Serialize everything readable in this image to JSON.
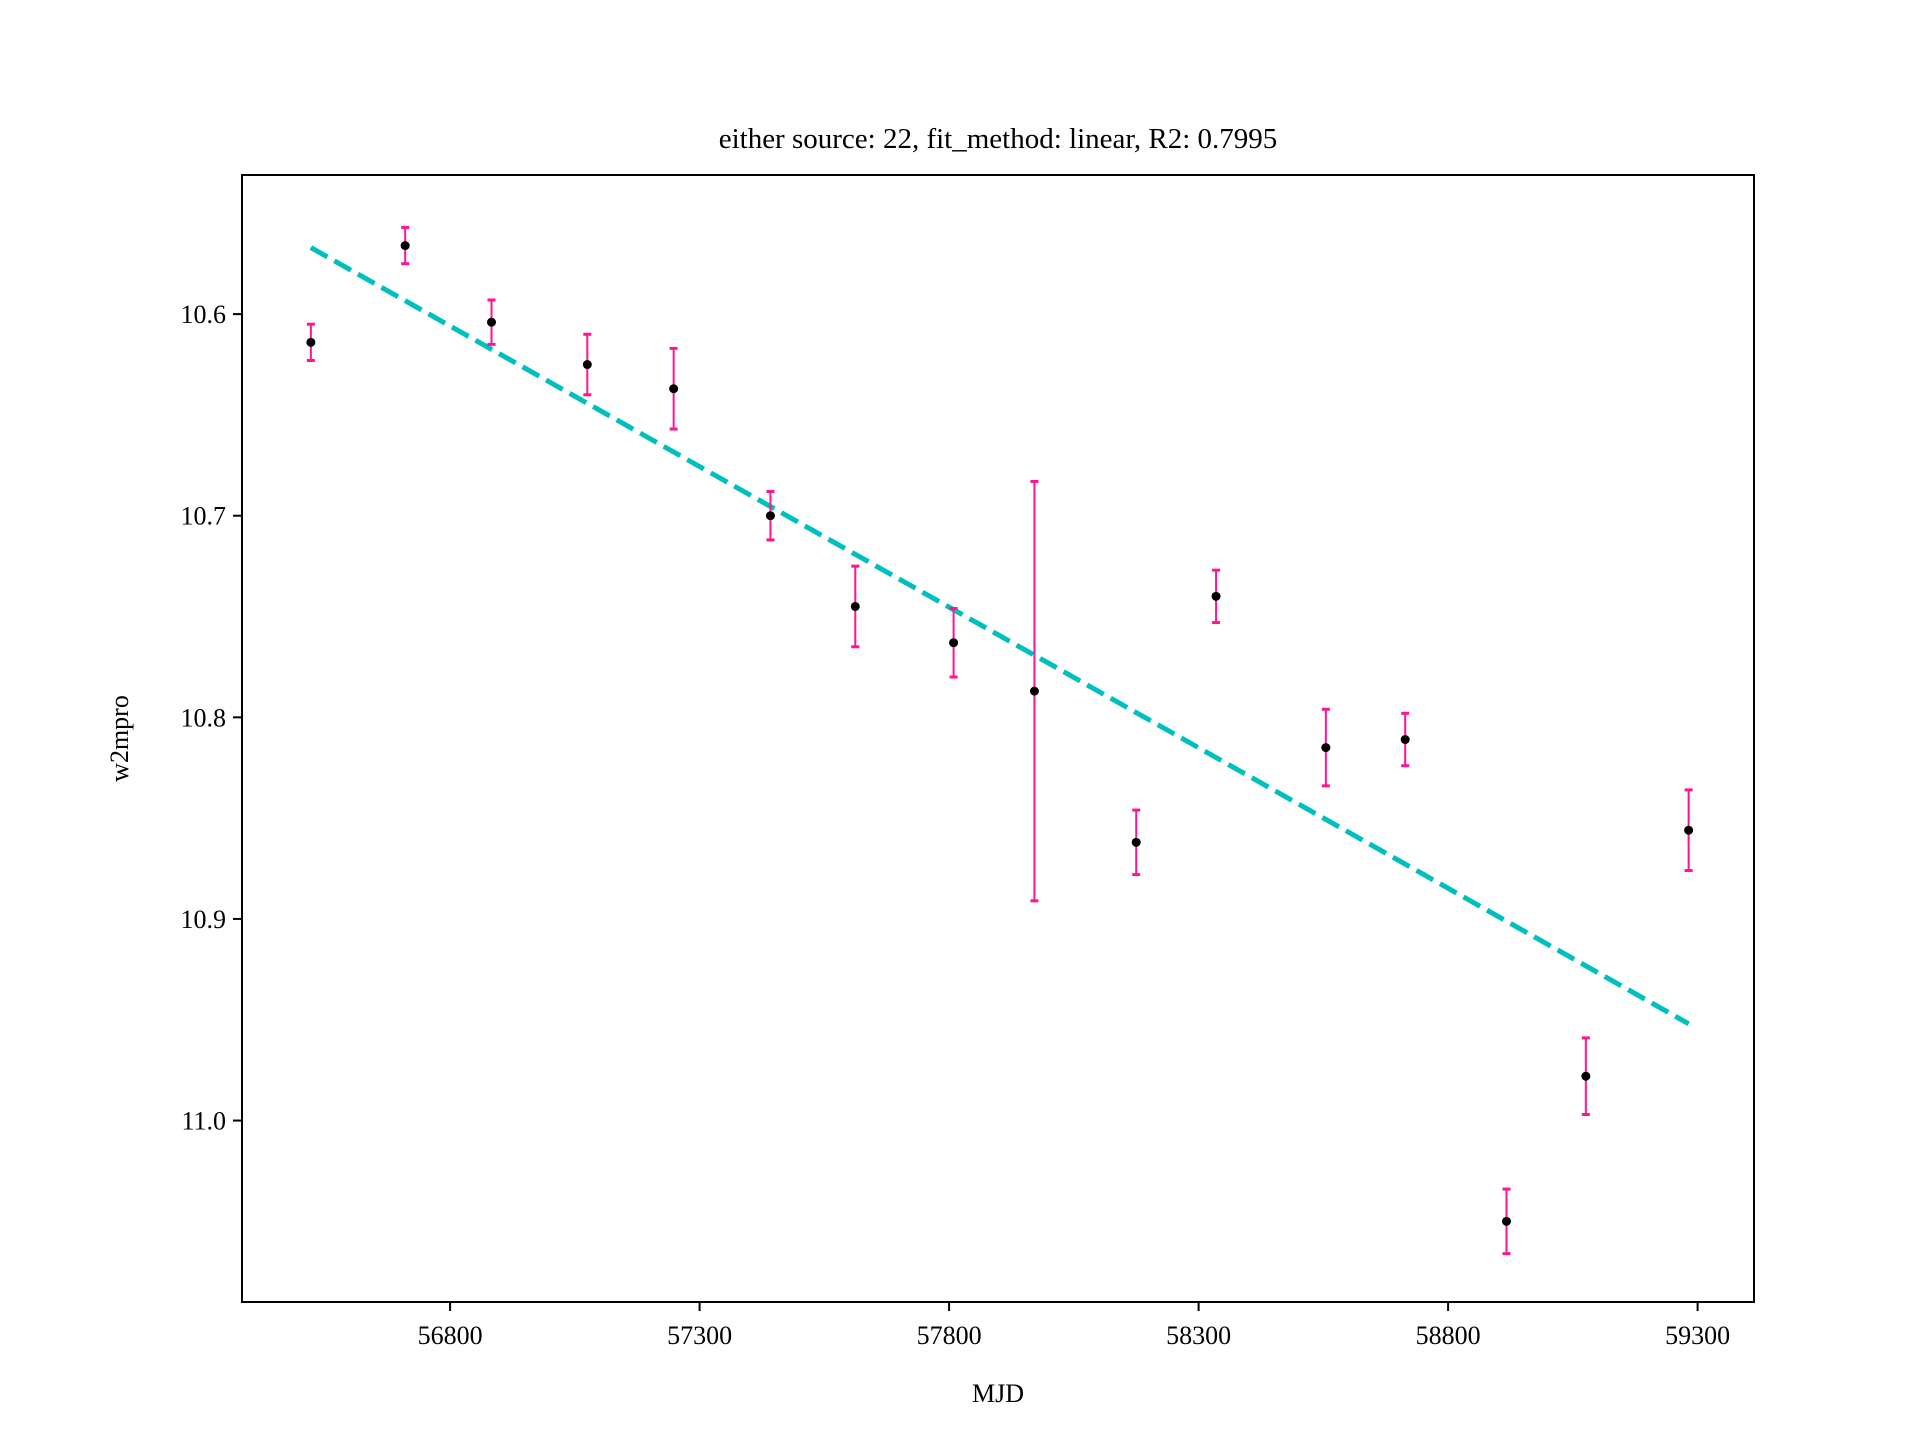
{
  "chart_data": {
    "type": "scatter",
    "title": "either source: 22,  fit_method: linear, R2: 0.7995",
    "xlabel": "MJD",
    "ylabel": "w2mpro",
    "xlim": [
      56383,
      59413
    ],
    "ylim": [
      11.09,
      10.531
    ],
    "y_inverted": true,
    "grid": false,
    "xticks": [
      56800,
      57300,
      57800,
      58300,
      58800,
      59300
    ],
    "yticks": [
      10.6,
      10.7,
      10.8,
      10.9,
      11.0
    ],
    "series": [
      {
        "kind": "errorbar",
        "color": "#ff1493",
        "marker_color": "#000000",
        "points": [
          {
            "x": 56521,
            "y": 10.614,
            "err": 0.009
          },
          {
            "x": 56710,
            "y": 10.566,
            "err": 0.009
          },
          {
            "x": 56883,
            "y": 10.604,
            "err": 0.011
          },
          {
            "x": 57075,
            "y": 10.625,
            "err": 0.015
          },
          {
            "x": 57248,
            "y": 10.637,
            "err": 0.02
          },
          {
            "x": 57442,
            "y": 10.7,
            "err": 0.012
          },
          {
            "x": 57612,
            "y": 10.745,
            "err": 0.02
          },
          {
            "x": 57809,
            "y": 10.763,
            "err": 0.017
          },
          {
            "x": 57971,
            "y": 10.787,
            "err": 0.104
          },
          {
            "x": 58175,
            "y": 10.862,
            "err": 0.016
          },
          {
            "x": 58335,
            "y": 10.74,
            "err": 0.013
          },
          {
            "x": 58555,
            "y": 10.815,
            "err": 0.019
          },
          {
            "x": 58714,
            "y": 10.811,
            "err": 0.013
          },
          {
            "x": 58917,
            "y": 11.05,
            "err": 0.016
          },
          {
            "x": 59076,
            "y": 10.978,
            "err": 0.019
          },
          {
            "x": 59282,
            "y": 10.856,
            "err": 0.02
          }
        ]
      },
      {
        "kind": "fit-line",
        "color": "#00bfbf",
        "dashed": true,
        "x": [
          56521,
          59282
        ],
        "y": [
          10.567,
          10.952
        ]
      }
    ]
  }
}
